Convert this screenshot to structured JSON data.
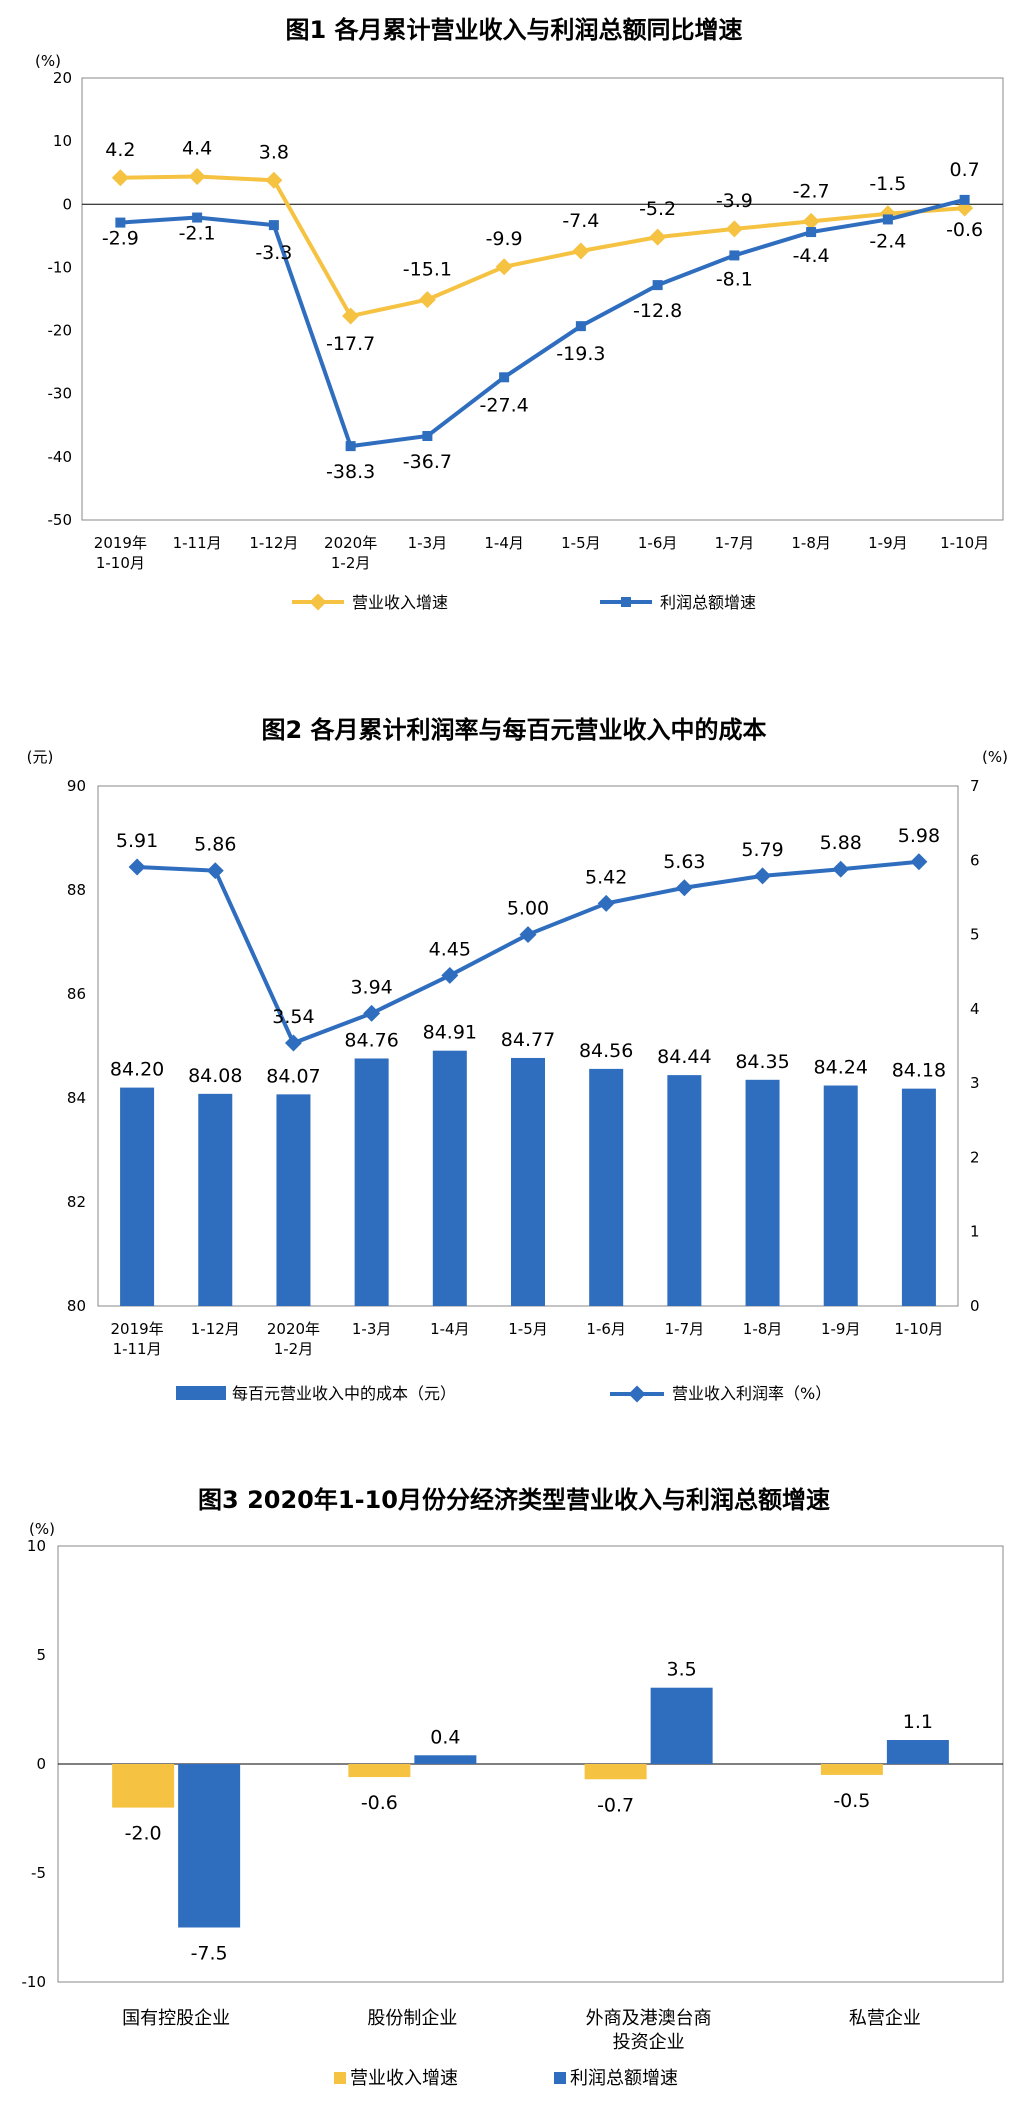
{
  "colors": {
    "yellow": "#F5C242",
    "blue": "#2F6DBE",
    "axis": "#888888"
  },
  "chart_data": [
    {
      "type": "line",
      "title": "图1  各月累计营业收入与利润总额同比增速",
      "yunit": "(%)",
      "ylim": [
        -50,
        20
      ],
      "yticks": [
        "20",
        "10",
        "0",
        "-10",
        "-20",
        "-30",
        "-40",
        "-50"
      ],
      "categories": [
        [
          "2019年",
          "1-10月"
        ],
        [
          "1-11月"
        ],
        [
          "1-12月"
        ],
        [
          "2020年",
          "1-2月"
        ],
        [
          "1-3月"
        ],
        [
          "1-4月"
        ],
        [
          "1-5月"
        ],
        [
          "1-6月"
        ],
        [
          "1-7月"
        ],
        [
          "1-8月"
        ],
        [
          "1-9月"
        ],
        [
          "1-10月"
        ]
      ],
      "series": [
        {
          "name": "营业收入增速",
          "color": "#F5C242",
          "values": [
            4.2,
            4.4,
            3.8,
            -17.7,
            -15.1,
            -9.9,
            -7.4,
            -5.2,
            -3.9,
            -2.7,
            -1.5,
            -0.6
          ],
          "labels": [
            "4.2",
            "4.4",
            "3.8",
            "-17.7",
            "-15.1",
            "-9.9",
            "-7.4",
            "-5.2",
            "-3.9",
            "-2.7",
            "-1.5",
            "-0.6"
          ]
        },
        {
          "name": "利润总额增速",
          "color": "#2F6DBE",
          "values": [
            -2.9,
            -2.1,
            -3.3,
            -38.3,
            -36.7,
            -27.4,
            -19.3,
            -12.8,
            -8.1,
            -4.4,
            -2.4,
            0.7
          ],
          "labels": [
            "-2.9",
            "-2.1",
            "-3.3",
            "-38.3",
            "-36.7",
            "-27.4",
            "-19.3",
            "-12.8",
            "-8.1",
            "-4.4",
            "-2.4",
            "0.7"
          ]
        }
      ],
      "legend": "bottom"
    },
    {
      "type": "bar",
      "title": "图2  各月累计利润率与每百元营业收入中的成本",
      "yunit_left": "(元)",
      "yunit_right": "(%)",
      "ylim_left": [
        80,
        90
      ],
      "ylim_right": [
        0,
        7
      ],
      "yticks_left": [
        "90",
        "88",
        "86",
        "84",
        "82",
        "80"
      ],
      "yticks_right": [
        "7",
        "6",
        "5",
        "4",
        "3",
        "2",
        "1",
        "0"
      ],
      "categories": [
        [
          "2019年",
          "1-11月"
        ],
        [
          "1-12月"
        ],
        [
          "2020年",
          "1-2月"
        ],
        [
          "1-3月"
        ],
        [
          "1-4月"
        ],
        [
          "1-5月"
        ],
        [
          "1-6月"
        ],
        [
          "1-7月"
        ],
        [
          "1-8月"
        ],
        [
          "1-9月"
        ],
        [
          "1-10月"
        ]
      ],
      "series": [
        {
          "name": "每百元营业收入中的成本（元）",
          "kind": "bar",
          "axis": "left",
          "color": "#2F6DBE",
          "values": [
            84.2,
            84.08,
            84.07,
            84.76,
            84.91,
            84.77,
            84.56,
            84.44,
            84.35,
            84.24,
            84.18
          ],
          "labels": [
            "84.20",
            "84.08",
            "84.07",
            "84.76",
            "84.91",
            "84.77",
            "84.56",
            "84.44",
            "84.35",
            "84.24",
            "84.18"
          ]
        },
        {
          "name": "营业收入利润率（%）",
          "kind": "line",
          "axis": "right",
          "color": "#2F6DBE",
          "values": [
            5.91,
            5.86,
            3.54,
            3.94,
            4.45,
            5.0,
            5.42,
            5.63,
            5.79,
            5.88,
            5.98
          ],
          "labels": [
            "5.91",
            "5.86",
            "3.54",
            "3.94",
            "4.45",
            "5.00",
            "5.42",
            "5.63",
            "5.79",
            "5.88",
            "5.98"
          ]
        }
      ],
      "legend": "bottom"
    },
    {
      "type": "bar",
      "title": "图3  2020年1-10月份分经济类型营业收入与利润总额增速",
      "yunit": "(%)",
      "ylim": [
        -10,
        10
      ],
      "yticks": [
        "10",
        "5",
        "0",
        "-5",
        "-10"
      ],
      "categories": [
        [
          "国有控股企业"
        ],
        [
          "股份制企业"
        ],
        [
          "外商及港澳台商",
          "投资企业"
        ],
        [
          "私营企业"
        ]
      ],
      "series": [
        {
          "name": "营业收入增速",
          "color": "#F5C242",
          "values": [
            -2.0,
            -0.6,
            -0.7,
            -0.5
          ],
          "labels": [
            "-2.0",
            "-0.6",
            "-0.7",
            "-0.5"
          ]
        },
        {
          "name": "利润总额增速",
          "color": "#2F6DBE",
          "values": [
            -7.5,
            0.4,
            3.5,
            1.1
          ],
          "labels": [
            "-7.5",
            "0.4",
            "3.5",
            "1.1"
          ]
        }
      ],
      "legend": "bottom"
    }
  ]
}
